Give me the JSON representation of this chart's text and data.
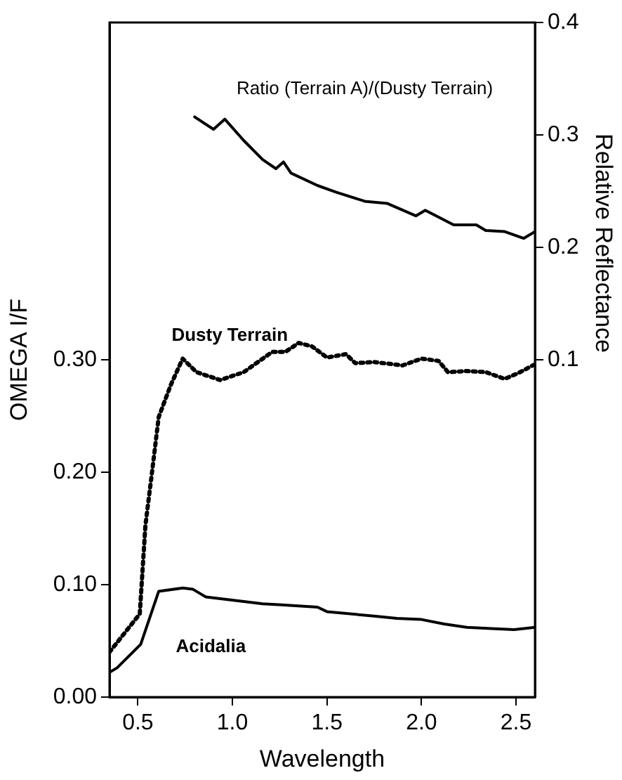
{
  "chart_data": {
    "type": "line",
    "xlabel": "Wavelength",
    "ylabel": "OMEGA I/F",
    "y2label": "Relative Reflectance",
    "xlim": [
      0.35,
      2.6
    ],
    "xticks": [
      {
        "value": 0.5,
        "label": "0.5"
      },
      {
        "value": 1.0,
        "label": "1.0"
      },
      {
        "value": 1.5,
        "label": "1.5"
      },
      {
        "value": 2.0,
        "label": "2.0"
      },
      {
        "value": 2.5,
        "label": "2.5"
      }
    ],
    "ylim": [
      0,
      0.6
    ],
    "yticks": [
      {
        "value": 0,
        "label": "0.00"
      },
      {
        "value": 0.1,
        "label": "0.10"
      },
      {
        "value": 0.2,
        "label": "0.20"
      },
      {
        "value": 0.3,
        "label": "0.30"
      }
    ],
    "y2lim": [
      -0.2,
      0.4
    ],
    "y2ticks": [
      0.1,
      0.2,
      0.3,
      0.4
    ],
    "grid": false,
    "legend": false,
    "marker": "none",
    "series": [
      {
        "name": "Ratio (Terrain A)/(Dusty Terrain)",
        "color": "#000000",
        "axis": "y2",
        "line_style": "solid",
        "x": [
          0.8,
          0.9,
          0.96,
          1.06,
          1.16,
          1.23,
          1.27,
          1.31,
          1.45,
          1.55,
          1.7,
          1.82,
          1.97,
          2.02,
          2.17,
          2.29,
          2.34,
          2.44,
          2.54,
          2.6
        ],
        "values": [
          0.316,
          0.305,
          0.314,
          0.295,
          0.278,
          0.27,
          0.276,
          0.266,
          0.255,
          0.249,
          0.241,
          0.239,
          0.228,
          0.233,
          0.22,
          0.22,
          0.215,
          0.214,
          0.208,
          0.214
        ]
      },
      {
        "name": "Dusty Terrain",
        "color": "#000000",
        "line_style": "dotted",
        "x": [
          0.35,
          0.51,
          0.54,
          0.577,
          0.61,
          0.675,
          0.737,
          0.81,
          0.935,
          1.06,
          1.21,
          1.28,
          1.35,
          1.42,
          1.5,
          1.6,
          1.65,
          1.75,
          1.9,
          2.0,
          2.09,
          2.14,
          2.24,
          2.34,
          2.44,
          2.51,
          2.6
        ],
        "values": [
          0.04,
          0.074,
          0.153,
          0.203,
          0.249,
          0.278,
          0.301,
          0.289,
          0.282,
          0.289,
          0.307,
          0.307,
          0.315,
          0.312,
          0.302,
          0.305,
          0.297,
          0.298,
          0.295,
          0.301,
          0.299,
          0.289,
          0.29,
          0.289,
          0.283,
          0.288,
          0.296
        ]
      },
      {
        "name": "Acidalia",
        "color": "#000000",
        "line_style": "solid",
        "x": [
          0.35,
          0.39,
          0.515,
          0.61,
          0.737,
          0.79,
          0.86,
          0.96,
          1.16,
          1.26,
          1.45,
          1.5,
          1.75,
          1.87,
          2.0,
          2.12,
          2.24,
          2.37,
          2.49,
          2.6
        ],
        "values": [
          0.022,
          0.026,
          0.047,
          0.094,
          0.097,
          0.096,
          0.089,
          0.087,
          0.083,
          0.082,
          0.08,
          0.076,
          0.072,
          0.07,
          0.069,
          0.065,
          0.062,
          0.061,
          0.06,
          0.062
        ]
      }
    ]
  }
}
